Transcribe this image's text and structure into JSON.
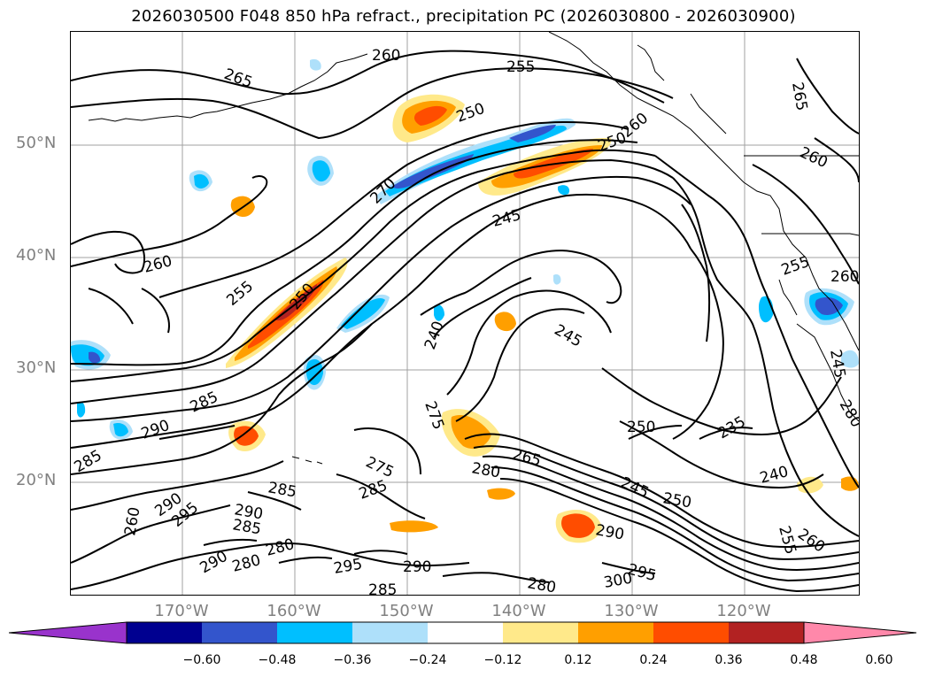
{
  "title": "2026030500 F048 850 hPa refract., precipitation PC (2026030800 - 2026030900)",
  "latitude_labels": [
    "50°N",
    "40°N",
    "30°N",
    "20°N"
  ],
  "longitude_labels": [
    "170°W",
    "160°W",
    "150°W",
    "140°W",
    "130°W",
    "120°W"
  ],
  "colorbar": {
    "colors": [
      "#9933cc",
      "#000090",
      "#3355cc",
      "#00bfff",
      "#aee0fa",
      "#ffffff",
      "#ffe98a",
      "#ff9f00",
      "#ff4d00",
      "#b22222",
      "#ff88aa"
    ],
    "tick_labels": [
      "−0.60",
      "−0.48",
      "−0.36",
      "−0.24",
      "−0.12",
      "0.12",
      "0.24",
      "0.36",
      "0.48",
      "0.60"
    ]
  },
  "contour_labels": [
    "265",
    "250",
    "255",
    "260",
    "265",
    "260",
    "250",
    "255",
    "260",
    "245",
    "245",
    "255",
    "260",
    "250",
    "235",
    "240",
    "285",
    "290",
    "285",
    "290",
    "275",
    "280",
    "265",
    "245",
    "250",
    "285",
    "290",
    "285",
    "280",
    "280",
    "295",
    "290",
    "285",
    "280",
    "300",
    "295",
    "290",
    "255",
    "260",
    "270",
    "240",
    "275",
    "250",
    "245",
    "280",
    "260",
    "285",
    "290",
    "295",
    "260"
  ]
}
